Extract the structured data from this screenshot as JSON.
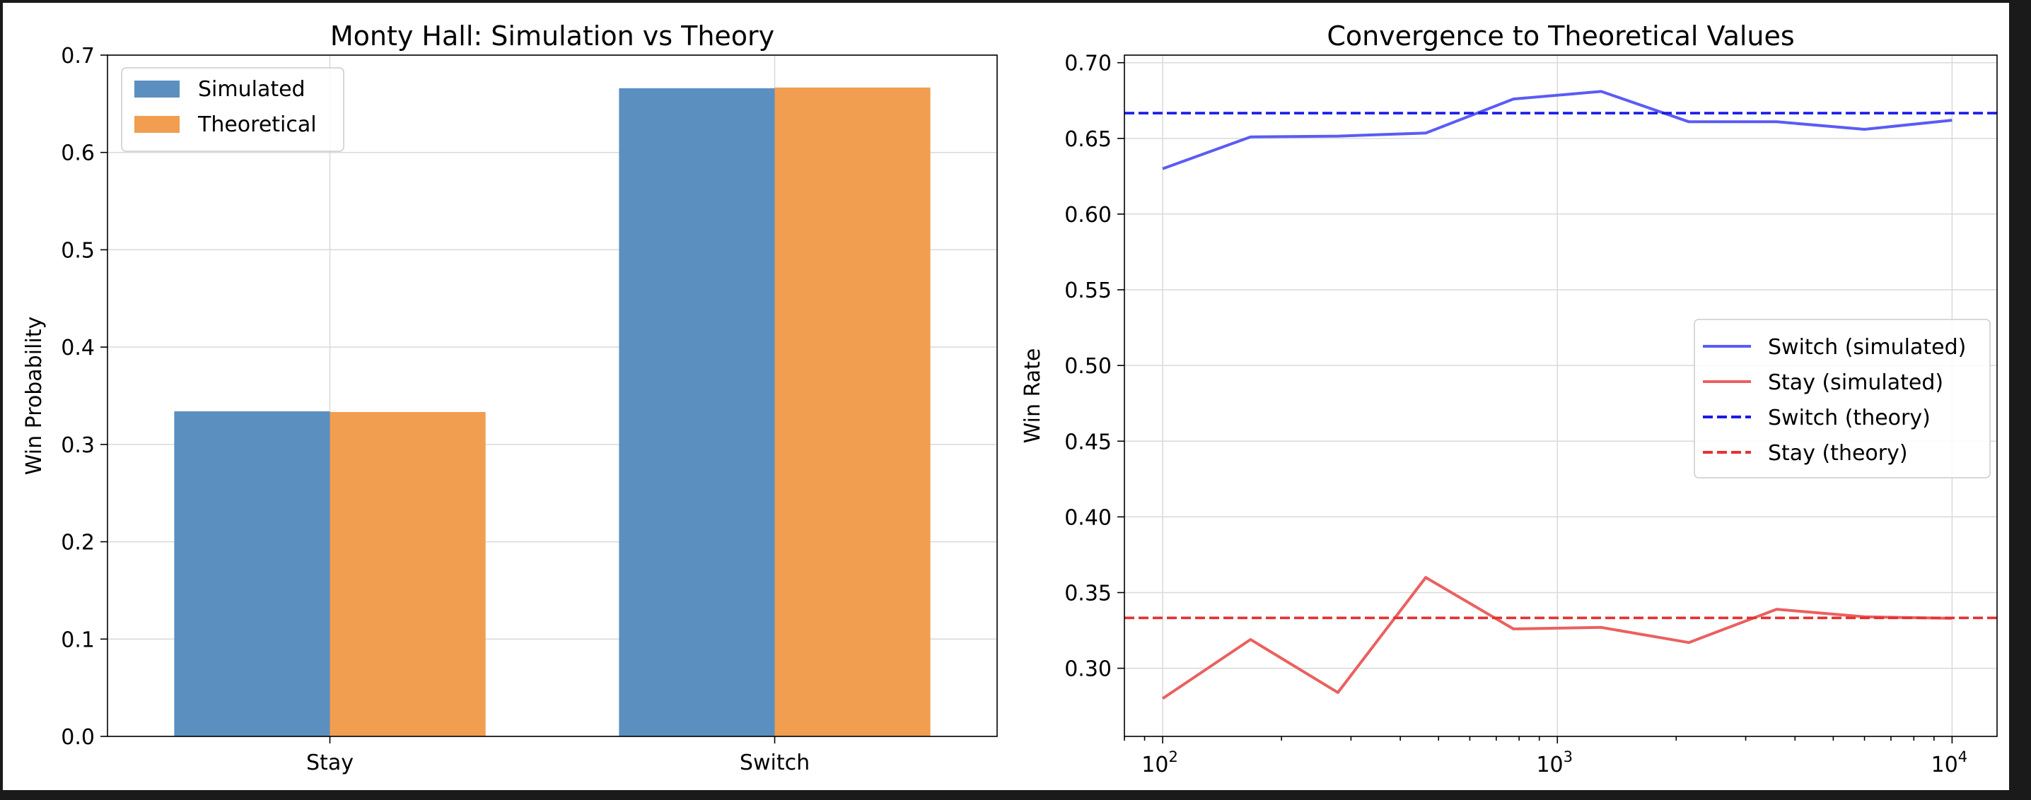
{
  "chart_data": [
    {
      "type": "bar",
      "title": "Monty Hall: Simulation vs Theory",
      "xlabel": "",
      "ylabel": "Win Probability",
      "categories": [
        "Stay",
        "Switch"
      ],
      "ylim": [
        0,
        0.7
      ],
      "yticks": [
        "0.0",
        "0.1",
        "0.2",
        "0.3",
        "0.4",
        "0.5",
        "0.6",
        "0.7"
      ],
      "grid": true,
      "legend_position": "top-left",
      "series": [
        {
          "name": "Simulated",
          "color": "#5b8fc0",
          "values": [
            0.334,
            0.666
          ]
        },
        {
          "name": "Theoretical",
          "color": "#f19e51",
          "values": [
            0.3333,
            0.6667
          ]
        }
      ]
    },
    {
      "type": "line",
      "title": "Convergence to Theoretical Values",
      "xlabel": "",
      "ylabel": "Win Rate",
      "xscale": "log",
      "xlim": [
        80,
        13000
      ],
      "ylim": [
        0.255,
        0.705
      ],
      "xticks": [
        "10^2",
        "10^3",
        "10^4"
      ],
      "yticks": [
        "0.30",
        "0.35",
        "0.40",
        "0.45",
        "0.50",
        "0.55",
        "0.60",
        "0.65",
        "0.70"
      ],
      "grid": true,
      "legend_position": "center-right",
      "x": [
        100,
        167,
        278,
        464,
        774,
        1292,
        2154,
        3594,
        5995,
        10000
      ],
      "series": [
        {
          "name": "Switch (simulated)",
          "color": "#5b5bf5",
          "style": "solid",
          "values": [
            0.63,
            0.651,
            0.6515,
            0.6535,
            0.676,
            0.681,
            0.661,
            0.661,
            0.656,
            0.662
          ]
        },
        {
          "name": "Stay (simulated)",
          "color": "#eb6060",
          "style": "solid",
          "values": [
            0.28,
            0.319,
            0.284,
            0.36,
            0.326,
            0.327,
            0.317,
            0.339,
            0.334,
            0.333
          ]
        },
        {
          "name": "Switch (theory)",
          "color": "#1a1ae6",
          "style": "dashed",
          "constant": 0.6667
        },
        {
          "name": "Stay (theory)",
          "color": "#e63232",
          "style": "dashed",
          "constant": 0.3333
        }
      ]
    }
  ]
}
